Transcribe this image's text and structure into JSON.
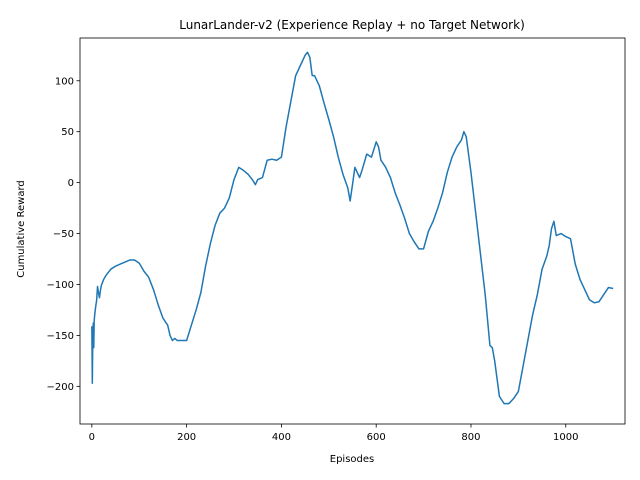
{
  "chart_data": {
    "type": "line",
    "title": "LunarLander-v2 (Experience Replay + no Target Network)",
    "xlabel": "Episodes",
    "ylabel": "Cumulative Reward",
    "xlim": [
      -25,
      1125
    ],
    "ylim": [
      -237,
      142
    ],
    "xticks": [
      0,
      200,
      400,
      600,
      800,
      1000
    ],
    "yticks": [
      -200,
      -150,
      -100,
      -50,
      0,
      50,
      100
    ],
    "xtick_labels": [
      "0",
      "200",
      "400",
      "600",
      "800",
      "1000"
    ],
    "ytick_labels": [
      "−200",
      "−150",
      "−100",
      "−50",
      "0",
      "50",
      "100"
    ],
    "grid": false,
    "line_color": "#1f77b4",
    "series": [
      {
        "x": [
          0,
          1,
          2,
          3,
          4,
          5,
          6,
          8,
          10,
          12,
          14,
          16,
          18,
          20,
          25,
          30,
          40,
          50,
          60,
          70,
          80,
          90,
          100,
          110,
          120,
          130,
          140,
          150,
          160,
          165,
          170,
          175,
          180,
          190,
          200,
          210,
          220,
          230,
          240,
          250,
          260,
          270,
          280,
          290,
          300,
          310,
          320,
          330,
          340,
          345,
          350,
          360,
          370,
          380,
          390,
          400,
          410,
          420,
          430,
          440,
          450,
          455,
          460,
          465,
          470,
          475,
          480,
          490,
          500,
          510,
          520,
          530,
          540,
          545,
          550,
          555,
          560,
          565,
          570,
          580,
          590,
          600,
          605,
          610,
          620,
          630,
          640,
          650,
          660,
          670,
          680,
          690,
          700,
          710,
          720,
          730,
          740,
          750,
          760,
          770,
          780,
          785,
          790,
          800,
          810,
          820,
          830,
          840,
          845,
          850,
          860,
          870,
          880,
          890,
          900,
          910,
          920,
          930,
          940,
          950,
          960,
          965,
          970,
          975,
          980,
          990,
          1000,
          1010,
          1020,
          1030,
          1040,
          1050,
          1060,
          1070,
          1080,
          1090,
          1100
        ],
        "values": [
          -141,
          -197,
          -150,
          -138,
          -162,
          -135,
          -130,
          -122,
          -116,
          -102,
          -108,
          -113,
          -106,
          -101,
          -95,
          -91,
          -85,
          -82,
          -80,
          -78,
          -76,
          -76,
          -79,
          -87,
          -93,
          -105,
          -120,
          -133,
          -140,
          -150,
          -155,
          -153,
          -155,
          -155,
          -155,
          -140,
          -125,
          -108,
          -82,
          -60,
          -42,
          -30,
          -25,
          -15,
          3,
          15,
          12,
          8,
          2,
          -2,
          3,
          5,
          22,
          23,
          22,
          25,
          55,
          80,
          105,
          115,
          125,
          128,
          123,
          105,
          105,
          100,
          95,
          78,
          62,
          45,
          25,
          8,
          -5,
          -18,
          -2,
          15,
          10,
          5,
          12,
          28,
          25,
          40,
          35,
          22,
          15,
          5,
          -10,
          -22,
          -35,
          -50,
          -58,
          -65,
          -65,
          -48,
          -38,
          -25,
          -10,
          10,
          25,
          35,
          42,
          50,
          45,
          10,
          -30,
          -70,
          -110,
          -160,
          -162,
          -175,
          -210,
          -217,
          -217,
          -212,
          -205,
          -180,
          -155,
          -130,
          -110,
          -85,
          -72,
          -62,
          -45,
          -38,
          -52,
          -50,
          -53,
          -55,
          -80,
          -95,
          -105,
          -115,
          -118,
          -117,
          -110,
          -103,
          -104
        ]
      }
    ]
  }
}
